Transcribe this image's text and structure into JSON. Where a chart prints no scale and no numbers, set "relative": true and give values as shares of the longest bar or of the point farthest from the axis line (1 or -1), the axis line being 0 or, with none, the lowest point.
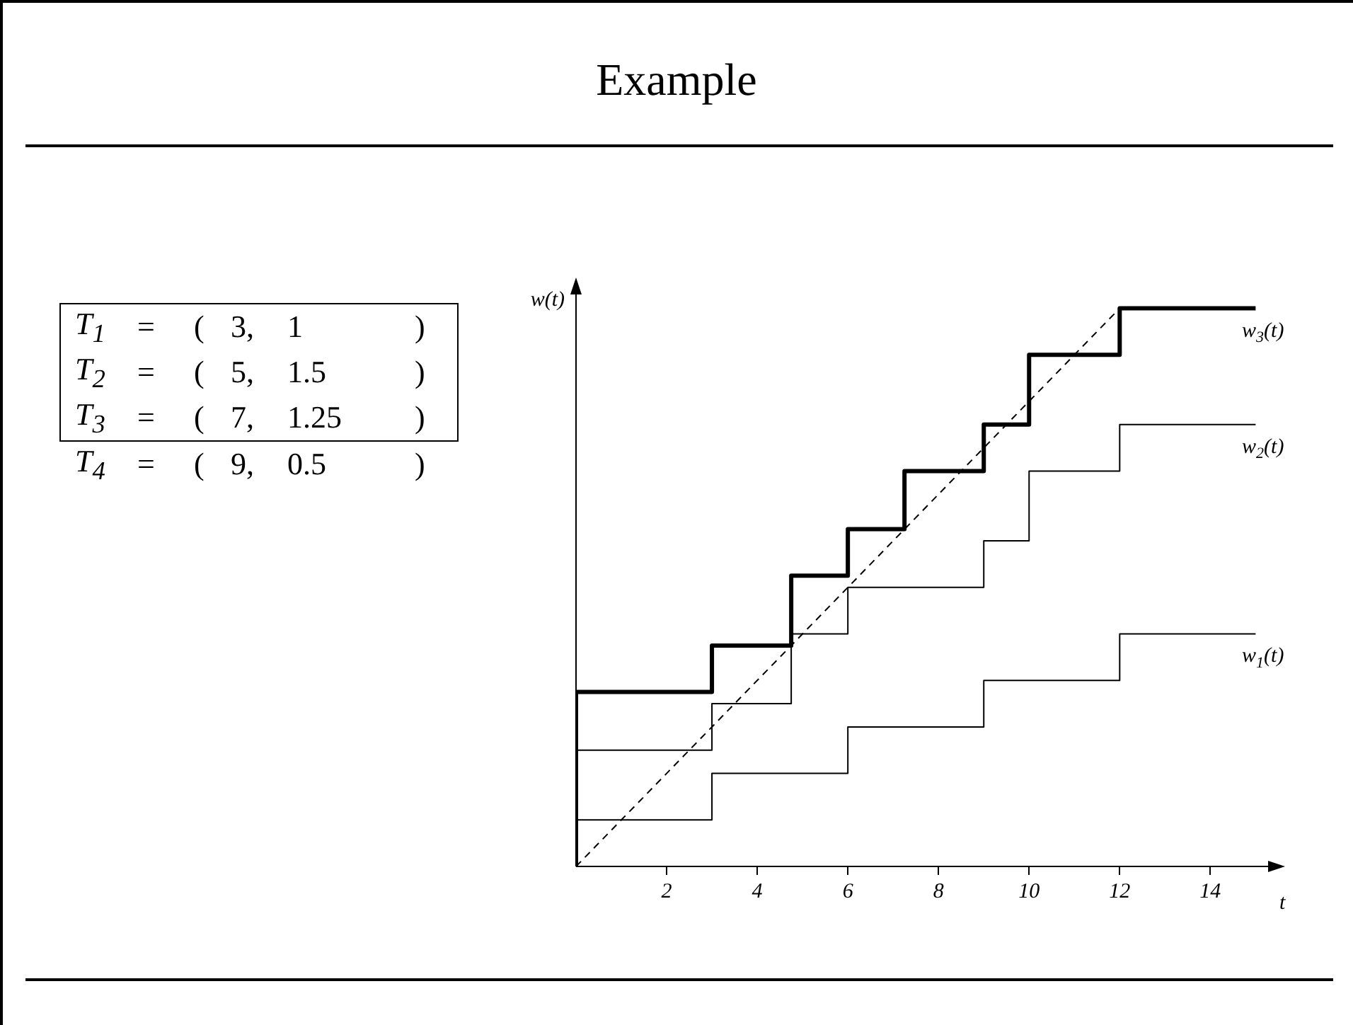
{
  "chart_data": {
    "type": "step",
    "title": "Example",
    "xlabel": "t",
    "ylabel": "w(t)",
    "relative": true,
    "legend": false,
    "grid": false,
    "marker": "none",
    "xlim": [
      0,
      15.4
    ],
    "xticks": [
      2,
      4,
      6,
      8,
      10,
      12,
      14
    ],
    "series": [
      {
        "name": "w$_{1}$(t)",
        "color": "#000000",
        "x": [
          0,
          3,
          6,
          9,
          12,
          15
        ],
        "values": [
          0.0833,
          0.1667,
          0.25,
          0.3333,
          0.4167,
          0.4167
        ]
      },
      {
        "name": "w$_{2}$(t)",
        "color": "#000000",
        "x": [
          0,
          3,
          4.75,
          6,
          9,
          10,
          12,
          15
        ],
        "values": [
          0.2083,
          0.2917,
          0.4167,
          0.5,
          0.5833,
          0.7083,
          0.7917,
          0.7917
        ]
      },
      {
        "name": "w$_{3}$(t)",
        "color": "#000000",
        "x": [
          0,
          0,
          3,
          4.75,
          6,
          7.25,
          9,
          10,
          12,
          15
        ],
        "values": [
          0,
          0.3125,
          0.3958,
          0.5208,
          0.6042,
          0.7083,
          0.7917,
          0.9167,
          1,
          1
        ]
      },
      {
        "type": "line",
        "color": "#000000",
        "line_style": "dashed",
        "x": [
          0,
          12
        ],
        "values": [
          0,
          1
        ]
      }
    ],
    "annotations": [
      "T$_{1}$ = ( 3, 1 )",
      "T$_{2}$ = ( 5, 1.5 )",
      "T$_{3}$ = ( 7, 1.25 )",
      "T$_{4}$ = ( 9, 0.5 )"
    ]
  }
}
